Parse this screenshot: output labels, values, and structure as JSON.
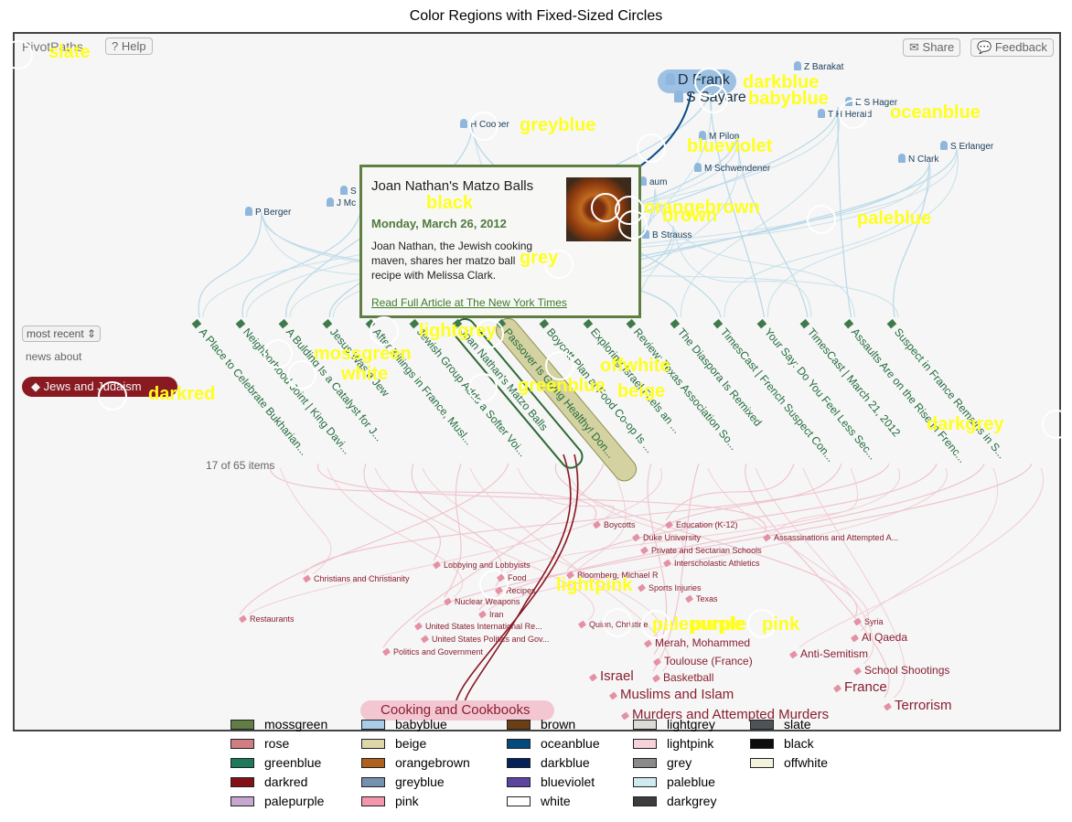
{
  "figure": {
    "title": "Color Regions with Fixed-Sized Circles"
  },
  "app": {
    "brand": "PivotPaths",
    "help_label": "Help",
    "share_label": "Share",
    "feedback_label": "Feedback",
    "sort_select": "most recent",
    "news_about": "news about",
    "topic_tag": "Jews and Judaism",
    "items_count": "17 of 65 items"
  },
  "people": [
    {
      "name": "Z Barakat"
    },
    {
      "name": "D Frank"
    },
    {
      "name": "S Sayare"
    },
    {
      "name": "E S Hager"
    },
    {
      "name": "T H Herald"
    },
    {
      "name": "H Cooper"
    },
    {
      "name": "M Pilon"
    },
    {
      "name": "S Erlanger"
    },
    {
      "name": "N Clark"
    },
    {
      "name": "M Schwendener"
    },
    {
      "name": "P Berger"
    },
    {
      "name": "S"
    },
    {
      "name": "J Mc"
    },
    {
      "name": "aum"
    },
    {
      "name": "B Strauss"
    }
  ],
  "articles": [
    {
      "title": "A Place to Celebrate Bukharian..."
    },
    {
      "title": "Neighborhood Joint | King Davi..."
    },
    {
      "title": "A Bulding Is a Catalyst for J..."
    },
    {
      "title": "Jesus Was a Jew"
    },
    {
      "title": "After Killings in France, Musl..."
    },
    {
      "title": "Jewish Group Adds a Softer Voi..."
    },
    {
      "title": "Joan Nathan's Matzo Balls"
    },
    {
      "title": "Passover Is Going Healthy! Don..."
    },
    {
      "title": "Boycott Plan at Food Co-op Is ..."
    },
    {
      "title": "Exploring Israel Fuels an ..."
    },
    {
      "title": "Review: Texas Association So..."
    },
    {
      "title": "The Diaspora Is Remixed"
    },
    {
      "title": "TimesCast | French Suspect Con..."
    },
    {
      "title": "Your Say: Do You Feel Less Sec..."
    },
    {
      "title": "TimesCast | March 21, 2012"
    },
    {
      "title": "Assaults Are on the Rise in Frenc..."
    },
    {
      "title": "Suspect in France Remains in S..."
    }
  ],
  "popup": {
    "title": "Joan Nathan's Matzo Balls",
    "date": "Monday, March 26, 2012",
    "body": "Joan Nathan, the Jewish cooking maven, shares her matzo ball recipe with Melissa Clark.",
    "link": "Read Full Article at The New York Times"
  },
  "tags": [
    {
      "label": "Boycotts"
    },
    {
      "label": "Education (K-12)"
    },
    {
      "label": "Duke University"
    },
    {
      "label": "Assassinations and Attempted A..."
    },
    {
      "label": "Private and Sectarian Schools"
    },
    {
      "label": "Interscholastic Athletics"
    },
    {
      "label": "Lobbying and Lobbyists"
    },
    {
      "label": "Christians and Christianity"
    },
    {
      "label": "Food"
    },
    {
      "label": "Recipes"
    },
    {
      "label": "Bloomberg, Michael R"
    },
    {
      "label": "Sports Injuries"
    },
    {
      "label": "Nuclear Weapons"
    },
    {
      "label": "Iran"
    },
    {
      "label": "Texas"
    },
    {
      "label": "Restaurants"
    },
    {
      "label": "United States International Re..."
    },
    {
      "label": "Quinn, Christine"
    },
    {
      "label": "Syria"
    },
    {
      "label": "United States Politics and Gov..."
    },
    {
      "label": "Al Qaeda"
    },
    {
      "label": "Politics and Government"
    },
    {
      "label": "Merah, Mohammed"
    },
    {
      "label": "Anti-Semitism"
    },
    {
      "label": "Toulouse (France)"
    },
    {
      "label": "School Shootings"
    },
    {
      "label": "Israel"
    },
    {
      "label": "Basketball"
    },
    {
      "label": "France"
    },
    {
      "label": "Muslims and Islam"
    },
    {
      "label": "Terrorism"
    },
    {
      "label": "Murders and Attempted Murders"
    },
    {
      "label": "Cooking and Cookbooks"
    }
  ],
  "color_marks": [
    {
      "name": "slate"
    },
    {
      "name": "darkblue"
    },
    {
      "name": "babyblue"
    },
    {
      "name": "oceanblue"
    },
    {
      "name": "greyblue"
    },
    {
      "name": "blueviolet"
    },
    {
      "name": "black"
    },
    {
      "name": "orangebrown"
    },
    {
      "name": "brown"
    },
    {
      "name": "paleblue"
    },
    {
      "name": "grey"
    },
    {
      "name": "lightgrey"
    },
    {
      "name": "mossgreen"
    },
    {
      "name": "offwhite"
    },
    {
      "name": "white"
    },
    {
      "name": "greenblue"
    },
    {
      "name": "beige"
    },
    {
      "name": "darkred"
    },
    {
      "name": "darkgrey"
    },
    {
      "name": "lightpink"
    },
    {
      "name": "palepurple"
    },
    {
      "name": "purple"
    },
    {
      "name": "pink"
    }
  ],
  "legend": [
    {
      "name": "mossgreen",
      "color": "#5f7d45"
    },
    {
      "name": "rose",
      "color": "#d07e82"
    },
    {
      "name": "greenblue",
      "color": "#1f7a5a"
    },
    {
      "name": "darkred",
      "color": "#841116"
    },
    {
      "name": "palepurple",
      "color": "#c5a7cf"
    },
    {
      "name": "babyblue",
      "color": "#a9cde9"
    },
    {
      "name": "beige",
      "color": "#ddd6a8"
    },
    {
      "name": "orangebrown",
      "color": "#b0601f"
    },
    {
      "name": "greyblue",
      "color": "#7591ad"
    },
    {
      "name": "pink",
      "color": "#f596ae"
    },
    {
      "name": "brown",
      "color": "#6b3f13"
    },
    {
      "name": "oceanblue",
      "color": "#054a7c"
    },
    {
      "name": "darkblue",
      "color": "#03225a"
    },
    {
      "name": "blueviolet",
      "color": "#5c45a0"
    },
    {
      "name": "white",
      "color": "#ffffff"
    },
    {
      "name": "lightgrey",
      "color": "#dddbd6"
    },
    {
      "name": "lightpink",
      "color": "#f6d2da"
    },
    {
      "name": "grey",
      "color": "#8a8a8a"
    },
    {
      "name": "paleblue",
      "color": "#d0e9f1"
    },
    {
      "name": "darkgrey",
      "color": "#3d3d3f"
    },
    {
      "name": "slate",
      "color": "#4e5358"
    },
    {
      "name": "black",
      "color": "#0d0d0d"
    },
    {
      "name": "offwhite",
      "color": "#f3f3dd"
    }
  ]
}
